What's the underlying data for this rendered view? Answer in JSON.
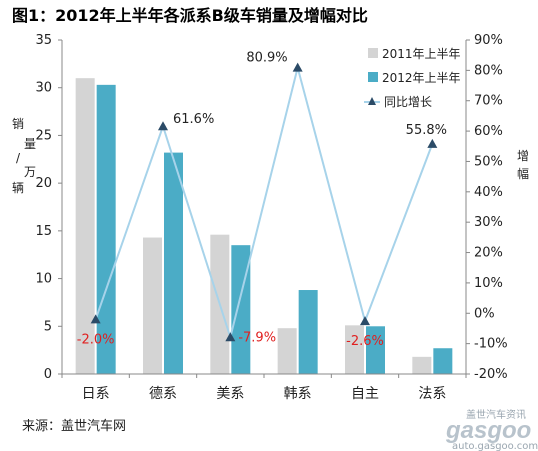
{
  "chart_data": {
    "type": "bar",
    "title": "图1：2012年上半年各派系B级车销量及增幅对比",
    "categories": [
      "日系",
      "德系",
      "美系",
      "韩系",
      "自主",
      "法系"
    ],
    "series": [
      {
        "name": "2011年上半年",
        "type": "bar",
        "axis": "left",
        "color": "#d4d4d4",
        "values": [
          31.0,
          14.3,
          14.6,
          4.8,
          5.1,
          1.8
        ]
      },
      {
        "name": "2012年上半年",
        "type": "bar",
        "axis": "left",
        "color": "#4bacc6",
        "values": [
          30.3,
          23.2,
          13.5,
          8.8,
          5.0,
          2.7
        ]
      },
      {
        "name": "同比增长",
        "type": "line",
        "axis": "right",
        "color": "#a7d3ea",
        "marker_color": "#2b4b67",
        "values": [
          -2.0,
          61.6,
          -7.9,
          80.9,
          -2.6,
          55.8
        ]
      }
    ],
    "data_labels": [
      "-2.0%",
      "61.6%",
      "-7.9%",
      "80.9%",
      "-2.6%",
      "55.8%"
    ],
    "label_colors": {
      "positive": "#222222",
      "negative": "#e02020"
    },
    "ylabel": "销量/万辆",
    "y2label": "增幅",
    "ylim": [
      0,
      35
    ],
    "yticks": [
      "0",
      "5",
      "10",
      "15",
      "20",
      "25",
      "30",
      "35"
    ],
    "y2lim": [
      -20,
      90
    ],
    "y2ticks": [
      "-20%",
      "-10%",
      "0%",
      "10%",
      "20%",
      "30%",
      "40%",
      "50%",
      "60%",
      "70%",
      "80%",
      "90%"
    ],
    "legend_position": "top-right",
    "grid": false
  },
  "source": "来源：盖世汽车网",
  "watermark": {
    "brand": "gasgoo",
    "line1": "盖世汽车资讯",
    "line2": "auto.gasgoo.com"
  }
}
